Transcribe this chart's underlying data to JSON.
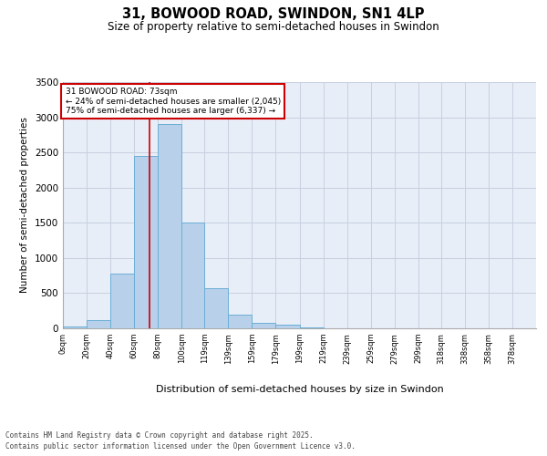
{
  "title_line1": "31, BOWOOD ROAD, SWINDON, SN1 4LP",
  "title_line2": "Size of property relative to semi-detached houses in Swindon",
  "xlabel": "Distribution of semi-detached houses by size in Swindon",
  "ylabel": "Number of semi-detached properties",
  "property_size": 73,
  "property_label": "31 BOWOOD ROAD: 73sqm",
  "pct_smaller": 24,
  "pct_larger": 75,
  "count_smaller": 2045,
  "count_larger": 6337,
  "footnote1": "Contains HM Land Registry data © Crown copyright and database right 2025.",
  "footnote2": "Contains public sector information licensed under the Open Government Licence v3.0.",
  "bar_edges": [
    0,
    20,
    40,
    60,
    80,
    100,
    119,
    139,
    159,
    179,
    199,
    219,
    239,
    259,
    279,
    299,
    318,
    338,
    358,
    378,
    398
  ],
  "bar_heights": [
    30,
    120,
    780,
    2450,
    2900,
    1500,
    570,
    200,
    80,
    50,
    10,
    0,
    0,
    0,
    0,
    0,
    0,
    0,
    0,
    0
  ],
  "bar_color": "#b8d0ea",
  "bar_edgecolor": "#6baed6",
  "red_line_color": "#cc0000",
  "background_color": "#e8eef8",
  "annotation_box_color": "#cc0000",
  "grid_color": "#c8d0e0",
  "ylim": [
    0,
    3500
  ],
  "yticks": [
    0,
    500,
    1000,
    1500,
    2000,
    2500,
    3000,
    3500
  ]
}
